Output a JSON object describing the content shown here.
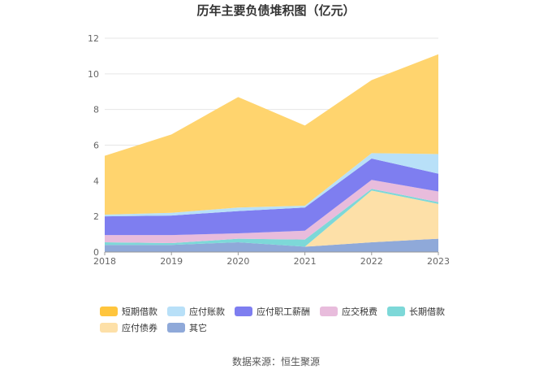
{
  "title": "历年主要负债堆积图（亿元）",
  "source_note": "数据来源：恒生聚源",
  "chart_data": {
    "type": "area",
    "stacked": true,
    "title": "历年主要负债堆积图（亿元）",
    "categories": [
      "2018",
      "2019",
      "2020",
      "2021",
      "2022",
      "2023"
    ],
    "ylim": [
      0,
      12
    ],
    "yticks": [
      "0",
      "2",
      "4",
      "6",
      "8",
      "10",
      "12"
    ],
    "grid": true,
    "legend_position": "bottom",
    "series": [
      {
        "name": "其它",
        "color": "#8fa9d9",
        "values": [
          0.4,
          0.4,
          0.55,
          0.3,
          0.55,
          0.75
        ]
      },
      {
        "name": "应付债券",
        "color": "#fde0a8",
        "values": [
          0,
          0,
          0,
          0,
          2.9,
          1.95
        ]
      },
      {
        "name": "长期借款",
        "color": "#7dd8d8",
        "values": [
          0.15,
          0.1,
          0.2,
          0.4,
          0.1,
          0.1
        ]
      },
      {
        "name": "应交税费",
        "color": "#e8bcdc",
        "values": [
          0.4,
          0.45,
          0.3,
          0.5,
          0.5,
          0.6
        ]
      },
      {
        "name": "应付职工薪酬",
        "color": "#7e7ef0",
        "values": [
          1.05,
          1.1,
          1.25,
          1.3,
          1.2,
          1.0
        ]
      },
      {
        "name": "应付账款",
        "color": "#b8e0f8",
        "values": [
          0.1,
          0.15,
          0.2,
          0.1,
          0.3,
          1.1
        ]
      },
      {
        "name": "短期借款",
        "color": "#ffd46e",
        "values": [
          3.3,
          4.4,
          6.2,
          4.5,
          4.1,
          5.6
        ]
      }
    ],
    "legend_order": [
      "短期借款",
      "应付账款",
      "应付职工薪酬",
      "应交税费",
      "长期借款",
      "应付债券",
      "其它"
    ],
    "legend_colors": {
      "短期借款": "#ffc53d",
      "应付账款": "#b8e0f8",
      "应付职工薪酬": "#7e7ef0",
      "应交税费": "#e8bcdc",
      "长期借款": "#7dd8d8",
      "应付债券": "#fde0a8",
      "其它": "#8fa9d9"
    }
  }
}
